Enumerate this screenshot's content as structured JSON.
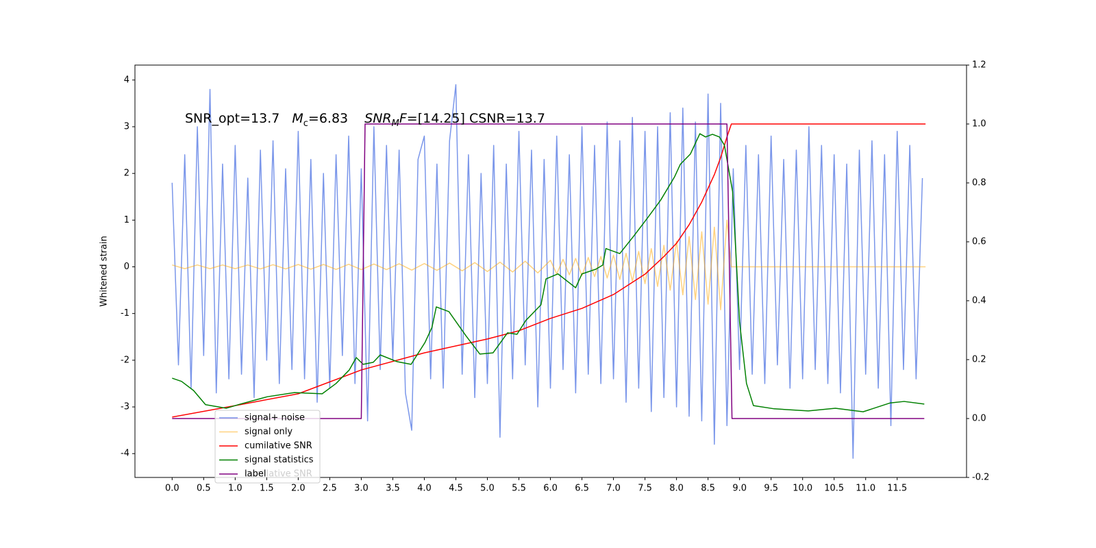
{
  "chart_data": {
    "type": "line",
    "annotation": [
      "SNR_opt=13.7",
      "M",
      "c",
      "=6.83",
      "SNR",
      "M",
      "F",
      "=[14.25] CSNR=13.7"
    ],
    "ylabel": "Whitened strain",
    "xlim": [
      -0.59,
      12.6
    ],
    "ylim": [
      -4.51,
      4.32
    ],
    "y2lim": [
      -0.2,
      1.2
    ],
    "xticks": [
      {
        "value": 0,
        "label": "0.0"
      },
      0.5,
      {
        "value": 1,
        "label": "1.0"
      },
      1.5,
      {
        "value": 2,
        "label": "2.0"
      },
      2.5,
      {
        "value": 3,
        "label": "3.0"
      },
      3.5,
      {
        "value": 4,
        "label": "4.0"
      },
      4.5,
      {
        "value": 5,
        "label": "5.0"
      },
      5.5,
      {
        "value": 6,
        "label": "6.0"
      },
      6.5,
      {
        "value": 7,
        "label": "7.0"
      },
      7.5,
      {
        "value": 8,
        "label": "8.0"
      },
      8.5,
      {
        "value": 9,
        "label": "9.0"
      },
      9.5,
      {
        "value": 10,
        "label": "10.0"
      },
      10.5,
      {
        "value": 11,
        "label": "11.0"
      },
      11.5
    ],
    "yticks": [
      -4,
      -3,
      -2,
      -1,
      0,
      1,
      2,
      3,
      4
    ],
    "y2ticks": [
      -0.2,
      {
        "value": 0,
        "label": "0.0"
      },
      0.2,
      0.4,
      0.6,
      0.8,
      {
        "value": 1,
        "label": "1.0"
      },
      1.2
    ],
    "twin_legend": [
      "cumilative SNR"
    ],
    "series": [
      {
        "name": "signal+ noise",
        "color": "#4169e1",
        "opacity": 0.7,
        "axis": "y",
        "x": [
          0,
          0.1,
          0.2,
          0.3,
          0.4,
          0.5,
          0.6,
          0.7,
          0.8,
          0.9,
          1,
          1.1,
          1.2,
          1.3,
          1.4,
          1.5,
          1.6,
          1.7,
          1.8,
          1.9,
          2,
          2.1,
          2.2,
          2.3,
          2.4,
          2.5,
          2.6,
          2.7,
          2.8,
          2.9,
          3,
          3.1,
          3.2,
          3.3,
          3.4,
          3.5,
          3.6,
          3.7,
          3.8,
          3.9,
          4,
          4.1,
          4.2,
          4.3,
          4.4,
          4.5,
          4.6,
          4.7,
          4.8,
          4.9,
          5,
          5.1,
          5.2,
          5.3,
          5.4,
          5.5,
          5.6,
          5.7,
          5.8,
          5.9,
          6,
          6.1,
          6.2,
          6.3,
          6.4,
          6.5,
          6.6,
          6.7,
          6.8,
          6.9,
          7,
          7.1,
          7.2,
          7.3,
          7.4,
          7.5,
          7.6,
          7.7,
          7.8,
          7.9,
          8,
          8.1,
          8.2,
          8.3,
          8.4,
          8.5,
          8.6,
          8.7,
          8.8,
          8.9,
          9,
          9.1,
          9.2,
          9.3,
          9.4,
          9.5,
          9.6,
          9.7,
          9.8,
          9.9,
          10,
          10.1,
          10.2,
          10.3,
          10.4,
          10.5,
          10.6,
          10.7,
          10.8,
          10.9,
          11,
          11.1,
          11.2,
          11.3,
          11.4,
          11.5,
          11.6,
          11.7,
          11.8,
          11.9
        ],
        "values": [
          1.8,
          -2.1,
          2.4,
          -2.6,
          3.0,
          -1.9,
          3.8,
          -2.7,
          2.2,
          -2.4,
          2.6,
          -2.3,
          1.9,
          -2.8,
          2.5,
          -2.0,
          2.7,
          -2.5,
          2.1,
          -2.2,
          2.9,
          -2.4,
          2.3,
          -2.9,
          2.0,
          -2.6,
          2.4,
          -1.9,
          2.8,
          -2.5,
          2.1,
          -3.3,
          3.0,
          -2.2,
          2.6,
          -2.0,
          2.5,
          -2.7,
          -3.5,
          2.3,
          2.8,
          -2.4,
          2.2,
          -2.6,
          2.7,
          3.9,
          -2.3,
          2.4,
          -2.8,
          2.0,
          -2.5,
          2.6,
          -3.65,
          2.2,
          -2.4,
          2.9,
          -2.1,
          2.5,
          -3.0,
          2.3,
          -2.6,
          2.8,
          -2.2,
          2.4,
          -2.7,
          3.0,
          -2.3,
          2.6,
          -2.5,
          3.1,
          -2.4,
          2.7,
          -2.9,
          3.2,
          -2.6,
          2.9,
          -3.1,
          3.0,
          -2.8,
          3.3,
          -3.0,
          3.4,
          -3.2,
          3.1,
          -3.3,
          3.7,
          -3.8,
          3.5,
          -3.4,
          2.1,
          -2.2,
          2.6,
          -2.3,
          2.4,
          -2.5,
          2.8,
          -2.1,
          2.3,
          -2.6,
          2.5,
          -2.4,
          3.0,
          -2.2,
          2.6,
          -2.5,
          2.4,
          -2.7,
          2.2,
          -4.1,
          2.5,
          -2.3,
          2.7,
          -2.6,
          2.4,
          -3.4,
          2.9,
          -2.2,
          2.6,
          -2.4,
          1.9
        ]
      },
      {
        "name": "signal only",
        "color": "#ffa500",
        "opacity": 0.5,
        "axis": "y",
        "x": [
          0,
          0.2,
          0.4,
          0.6,
          0.8,
          1,
          1.2,
          1.4,
          1.6,
          1.8,
          2,
          2.2,
          2.4,
          2.6,
          2.8,
          3,
          3.2,
          3.4,
          3.6,
          3.8,
          4,
          4.2,
          4.4,
          4.6,
          4.8,
          5,
          5.2,
          5.4,
          5.6,
          5.8,
          6,
          6.1,
          6.2,
          6.3,
          6.4,
          6.5,
          6.6,
          6.7,
          6.8,
          6.9,
          7,
          7.1,
          7.2,
          7.3,
          7.4,
          7.5,
          7.6,
          7.7,
          7.8,
          7.9,
          8,
          8.1,
          8.2,
          8.3,
          8.4,
          8.5,
          8.6,
          8.7,
          8.8,
          8.87,
          11.95
        ],
        "values": [
          0.04,
          -0.04,
          0.04,
          -0.04,
          0.04,
          -0.04,
          0.04,
          -0.045,
          0.045,
          -0.045,
          0.05,
          -0.05,
          0.05,
          -0.055,
          0.055,
          -0.06,
          0.06,
          -0.06,
          0.065,
          -0.07,
          0.07,
          -0.075,
          0.08,
          -0.085,
          0.09,
          -0.1,
          0.1,
          -0.11,
          0.12,
          -0.13,
          0.14,
          -0.15,
          0.16,
          -0.17,
          0.18,
          -0.19,
          0.2,
          -0.21,
          0.22,
          -0.24,
          0.25,
          -0.27,
          0.29,
          -0.31,
          0.33,
          -0.36,
          0.39,
          -0.42,
          0.46,
          -0.5,
          0.55,
          -0.6,
          0.65,
          -0.7,
          0.75,
          -0.8,
          0.85,
          -0.92,
          1.0,
          0,
          0
        ]
      },
      {
        "name": "cumilative SNR",
        "color": "#ff0000",
        "opacity": 1,
        "axis": "y2",
        "x": [
          0,
          1,
          2,
          3,
          4,
          5,
          5.5,
          6,
          6.5,
          7,
          7.5,
          7.8,
          8,
          8.2,
          8.4,
          8.6,
          8.7,
          8.8,
          8.87,
          11.95
        ],
        "values": [
          0.005,
          0.044,
          0.084,
          0.165,
          0.223,
          0.27,
          0.298,
          0.34,
          0.374,
          0.421,
          0.49,
          0.55,
          0.595,
          0.658,
          0.735,
          0.828,
          0.886,
          0.956,
          1.0,
          1.0
        ]
      },
      {
        "name": "signal statistics",
        "color": "#008000",
        "opacity": 1,
        "axis": "y2",
        "x": [
          0,
          0.15,
          0.34,
          0.53,
          0.86,
          1.08,
          1.51,
          1.94,
          2.38,
          2.6,
          2.81,
          2.92,
          3.03,
          3.19,
          3.3,
          3.57,
          3.79,
          4.01,
          4.12,
          4.19,
          4.39,
          4.66,
          4.88,
          5.09,
          5.32,
          5.47,
          5.61,
          5.85,
          5.93,
          6.12,
          6.4,
          6.5,
          6.72,
          6.83,
          6.88,
          7.1,
          7.32,
          7.54,
          7.75,
          7.97,
          8.06,
          8.22,
          8.37,
          8.46,
          8.57,
          8.68,
          8.76,
          8.89,
          9.0,
          9.11,
          9.22,
          9.55,
          10.09,
          10.52,
          10.96,
          11.39,
          11.61,
          11.93
        ],
        "values": [
          0.137,
          0.126,
          0.095,
          0.047,
          0.035,
          0.049,
          0.074,
          0.088,
          0.084,
          0.119,
          0.165,
          0.207,
          0.184,
          0.191,
          0.216,
          0.193,
          0.184,
          0.258,
          0.309,
          0.379,
          0.363,
          0.281,
          0.219,
          0.223,
          0.291,
          0.286,
          0.333,
          0.386,
          0.474,
          0.491,
          0.444,
          0.491,
          0.507,
          0.521,
          0.577,
          0.56,
          0.619,
          0.681,
          0.742,
          0.821,
          0.863,
          0.898,
          0.967,
          0.956,
          0.965,
          0.956,
          0.928,
          0.77,
          0.328,
          0.119,
          0.044,
          0.033,
          0.026,
          0.035,
          0.023,
          0.053,
          0.058,
          0.049
        ]
      },
      {
        "name": "label",
        "color": "#800080",
        "opacity": 1,
        "axis": "y2",
        "x": [
          0,
          3.0,
          3.06,
          8.8,
          8.88,
          11.93
        ],
        "values": [
          0,
          0,
          1,
          1,
          0,
          0
        ]
      }
    ]
  }
}
